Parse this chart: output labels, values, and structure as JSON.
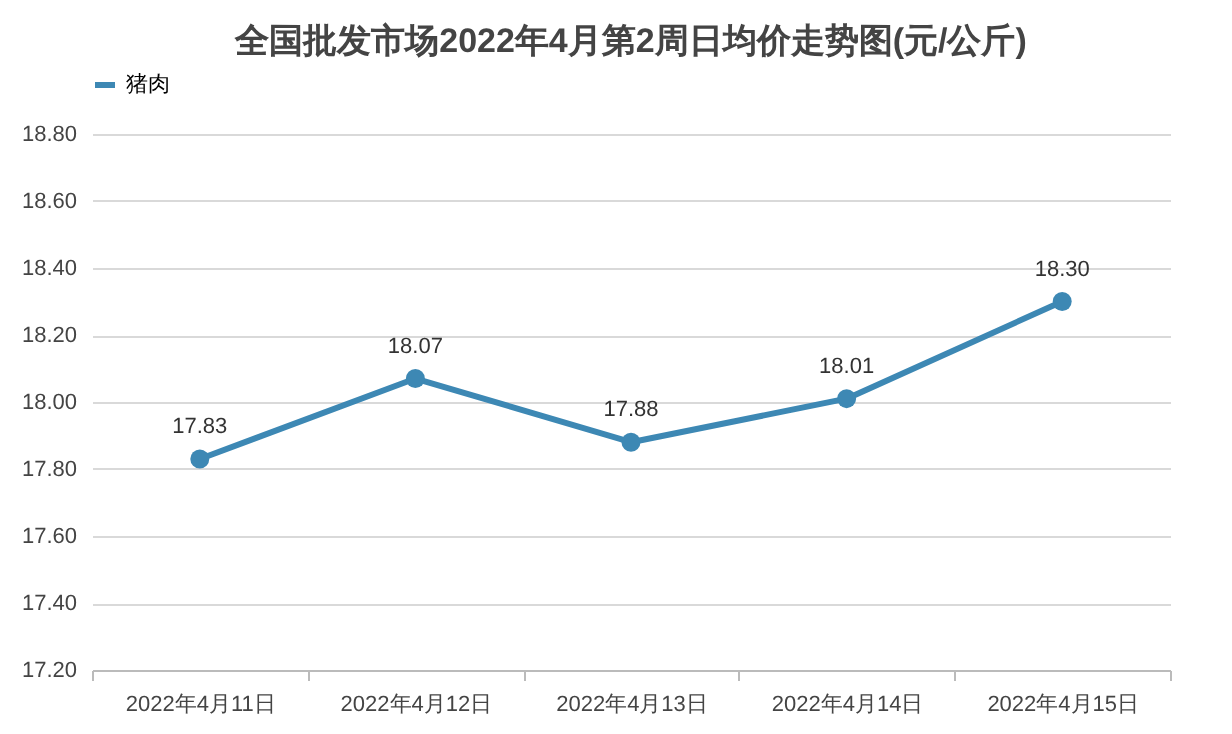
{
  "chart_data": {
    "type": "line",
    "title": "全国批发市场2022年4月第2周日均价走势图(元/公斤)",
    "categories": [
      "2022年4月11日",
      "2022年4月12日",
      "2022年4月13日",
      "2022年4月14日",
      "2022年4月15日"
    ],
    "series": [
      {
        "name": "猪肉",
        "color": "#3d88b4",
        "values": [
          17.83,
          18.07,
          17.88,
          18.01,
          18.3
        ],
        "value_labels": [
          "17.83",
          "18.07",
          "17.88",
          "18.01",
          "18.30"
        ]
      }
    ],
    "ylim": [
      17.2,
      18.8
    ],
    "yticks": [
      {
        "value": 17.2,
        "label": "17.20"
      },
      {
        "value": 17.4,
        "label": "17.40"
      },
      {
        "value": 17.6,
        "label": "17.60"
      },
      {
        "value": 17.8,
        "label": "17.80"
      },
      {
        "value": 18.0,
        "label": "18.00"
      },
      {
        "value": 18.2,
        "label": "18.20"
      },
      {
        "value": 18.4,
        "label": "18.40"
      },
      {
        "value": 18.6,
        "label": "18.60"
      },
      {
        "value": 18.8,
        "label": "18.80"
      }
    ],
    "grid": "y",
    "legend": "top",
    "marker": "circle",
    "line_style": "solid"
  }
}
